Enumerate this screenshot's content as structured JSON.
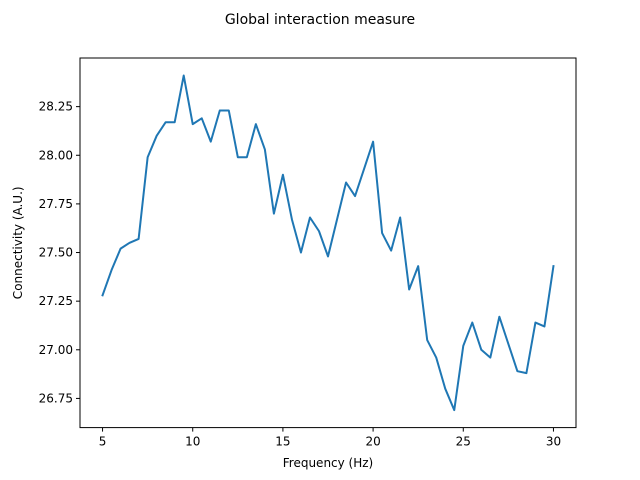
{
  "chart_data": {
    "type": "line",
    "title": "Global interaction measure",
    "xlabel": "Frequency (Hz)",
    "ylabel": "Connectivity (A.U.)",
    "xlim": [
      3.75,
      31.25
    ],
    "ylim": [
      26.6,
      28.5
    ],
    "xticks": [
      5,
      10,
      15,
      20,
      25,
      30
    ],
    "yticks": [
      26.75,
      27.0,
      27.25,
      27.5,
      27.75,
      28.0,
      28.25
    ],
    "ytick_labels": [
      "26.75",
      "27.00",
      "27.25",
      "27.50",
      "27.75",
      "28.00",
      "28.25"
    ],
    "grid": false,
    "color": "#1f77b4",
    "series": [
      {
        "x": [
          5.0,
          5.5,
          6.0,
          6.5,
          7.0,
          7.5,
          8.0,
          8.5,
          9.0,
          9.5,
          10.0,
          10.5,
          11.0,
          11.5,
          12.0,
          12.5,
          13.0,
          13.5,
          14.0,
          14.5,
          15.0,
          15.5,
          16.0,
          16.5,
          17.0,
          17.5,
          18.0,
          18.5,
          19.0,
          19.5,
          20.0,
          20.5,
          21.0,
          21.5,
          22.0,
          22.5,
          23.0,
          23.5,
          24.0,
          24.5,
          25.0,
          25.5,
          26.0,
          26.5,
          27.0,
          27.5,
          28.0,
          28.5,
          29.0,
          29.5,
          30.0
        ],
        "values": [
          27.28,
          27.41,
          27.52,
          27.55,
          27.57,
          27.99,
          28.1,
          28.17,
          28.17,
          28.41,
          28.16,
          28.19,
          28.07,
          28.23,
          28.23,
          27.99,
          27.99,
          28.16,
          28.03,
          27.7,
          27.9,
          27.67,
          27.5,
          27.68,
          27.61,
          27.48,
          27.67,
          27.86,
          27.79,
          27.93,
          28.07,
          27.6,
          27.51,
          27.68,
          27.31,
          27.43,
          27.05,
          26.96,
          26.8,
          26.69,
          27.02,
          27.14,
          27.0,
          26.96,
          27.17,
          27.03,
          26.89,
          26.88,
          27.14,
          27.12,
          27.43
        ]
      }
    ]
  }
}
